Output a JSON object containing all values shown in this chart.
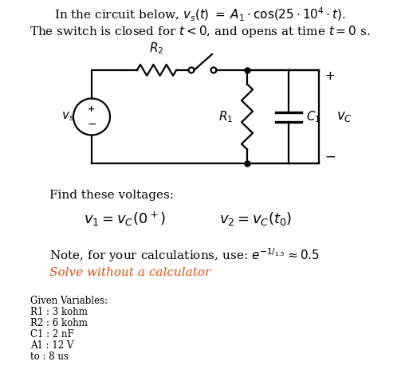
{
  "bg_color": "#ffffff",
  "text_color": "#000000",
  "solve_color": "#e05010",
  "circuit_color": "#000000",
  "title1": "In the circuit below, $v_s(t)\\;=\\;A_1 \\cdot \\cos(25 \\cdot 10^4 \\cdot t)$.",
  "title2": "The switch is closed for $t < 0$, and opens at time $t = 0$ s.",
  "find_text": "Find these voltages:",
  "v1_text": "$v_1 = v_C(0^+)$",
  "v2_text": "$v_2 = v_C(t_0)$",
  "note_text": "Note, for your calculations, use: $e^{-1/_{1.5}} \\approx 0.5$",
  "solve_text": "Solve without a calculator",
  "given_header": "Given Variables:",
  "given_vars": [
    "R1 : 3 kohm",
    "R2 : 6 kohm",
    "C1 : 2 nF",
    "A1 : 12 V",
    "to : 8 us"
  ],
  "main_fs": 11,
  "eq_fs": 13,
  "given_fs": 8.5
}
